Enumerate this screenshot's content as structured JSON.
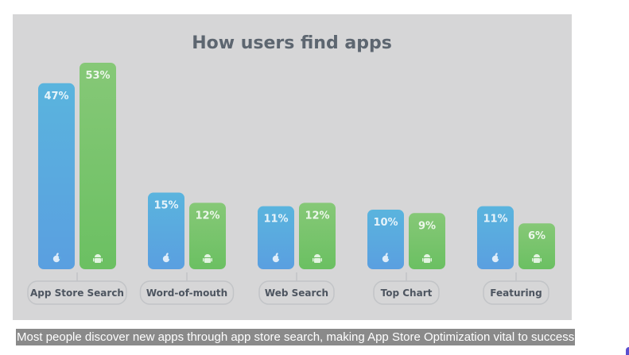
{
  "chart_data": {
    "type": "bar",
    "title": "How users find apps",
    "categories": [
      "App Store Search",
      "Word-of-mouth",
      "Web Search",
      "Top Chart",
      "Featuring"
    ],
    "series": [
      {
        "name": "iOS",
        "icon": "apple-icon",
        "color_top": "#5ab4de",
        "color_bottom": "#5a9fe0",
        "values": [
          47,
          15,
          11,
          10,
          11
        ],
        "labels": [
          "47%",
          "15%",
          "11%",
          "10%",
          "11%"
        ]
      },
      {
        "name": "Android",
        "icon": "android-icon",
        "color_top": "#86c877",
        "color_bottom": "#6bc062",
        "values": [
          53,
          12,
          12,
          9,
          6
        ],
        "labels": [
          "53%",
          "12%",
          "12%",
          "9%",
          "6%"
        ]
      }
    ],
    "unit": "%",
    "ylim": [
      0,
      53
    ],
    "grid": false
  },
  "caption": "Most people discover new apps through app store search, making App Store Optimization vital to success"
}
